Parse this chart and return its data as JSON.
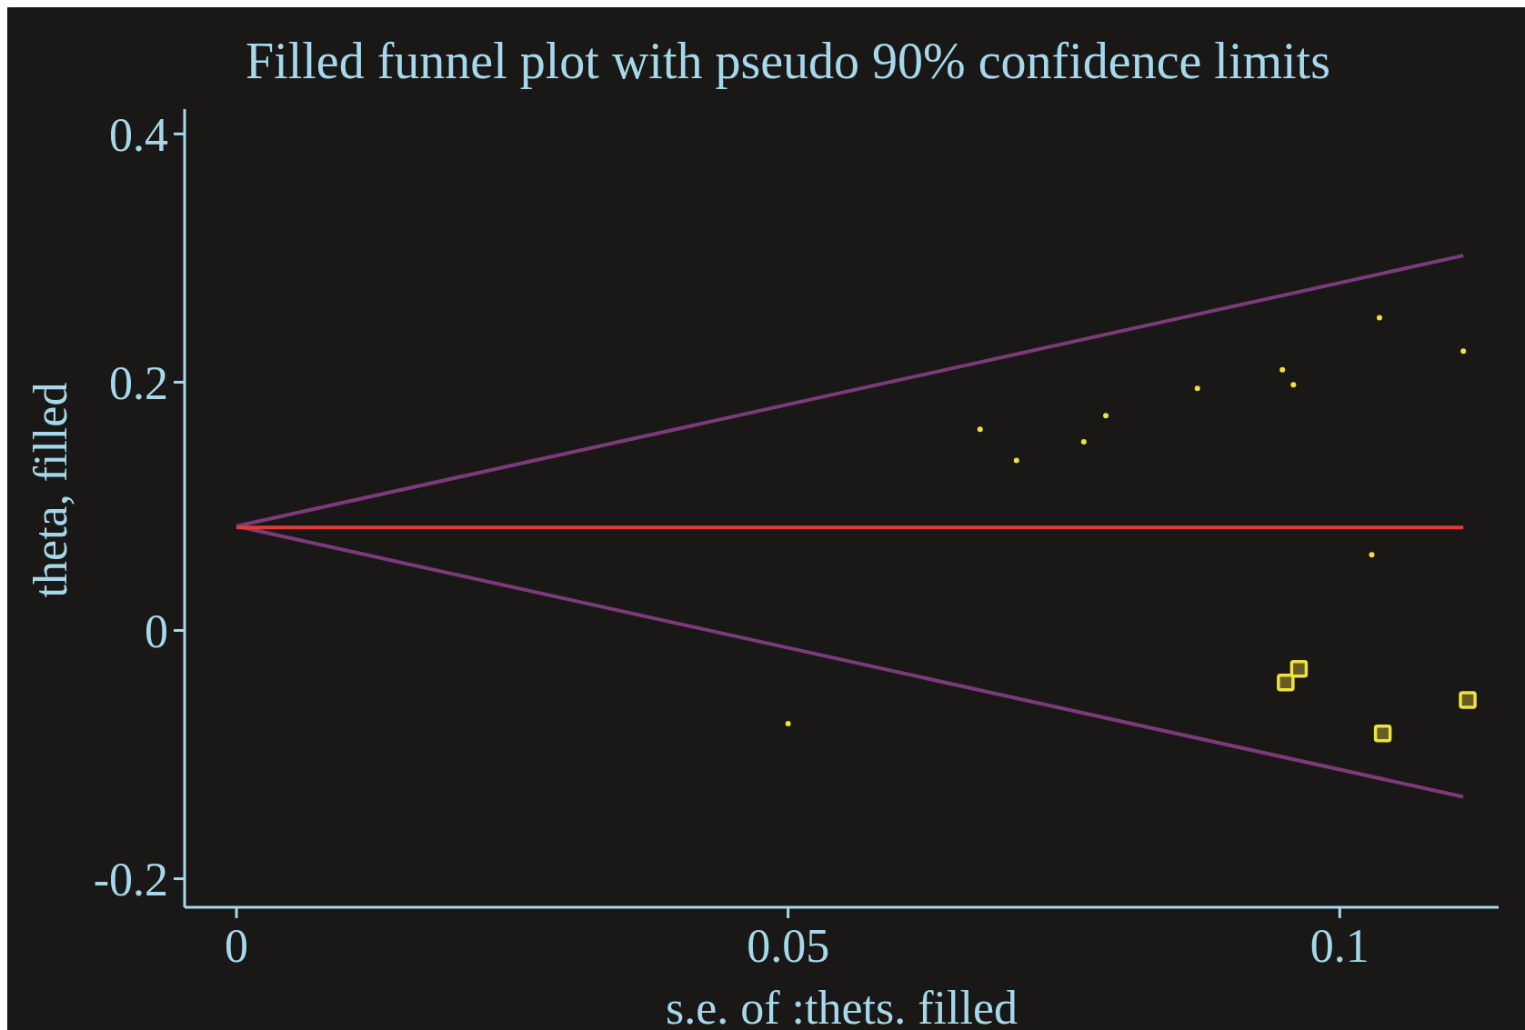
{
  "chart_data": {
    "type": "scatter",
    "title": "Filled funnel plot with pseudo 90% confidence limits",
    "xlabel": "s.e. of :thets. filled",
    "ylabel": "theta, filled",
    "xlim": [
      -0.0047,
      0.1144
    ],
    "ylim": [
      -0.223,
      0.42
    ],
    "xticks": [
      0,
      0.05,
      0.1
    ],
    "yticks": [
      -0.2,
      0,
      0.2,
      0.4
    ],
    "grid": false,
    "series": [
      {
        "type": "line",
        "color": "#7b3b7a",
        "x": [
          0,
          0.1112
        ],
        "values": [
          0.084,
          0.302
        ]
      },
      {
        "type": "line",
        "color": "#7b3b7a",
        "x": [
          0,
          0.1112
        ],
        "values": [
          0.084,
          -0.134
        ]
      },
      {
        "type": "line",
        "color": "#e03a3a",
        "x": [
          0,
          0.1112
        ],
        "values": [
          0.083,
          0.083
        ]
      },
      {
        "marker": "circle",
        "color": "#f0e040",
        "x": [
          0.0674,
          0.0707,
          0.0768,
          0.0788,
          0.0871,
          0.0948,
          0.0958,
          0.1036,
          0.1112,
          0.1029,
          0.05
        ],
        "values": [
          0.162,
          0.137,
          0.152,
          0.173,
          0.195,
          0.21,
          0.198,
          0.252,
          0.225,
          0.061,
          -0.075
        ]
      },
      {
        "marker": "square",
        "color": "#f0e040",
        "x": [
          0.0951,
          0.0963,
          0.1039,
          0.1116
        ],
        "values": [
          -0.042,
          -0.031,
          -0.083,
          -0.056
        ]
      }
    ]
  }
}
